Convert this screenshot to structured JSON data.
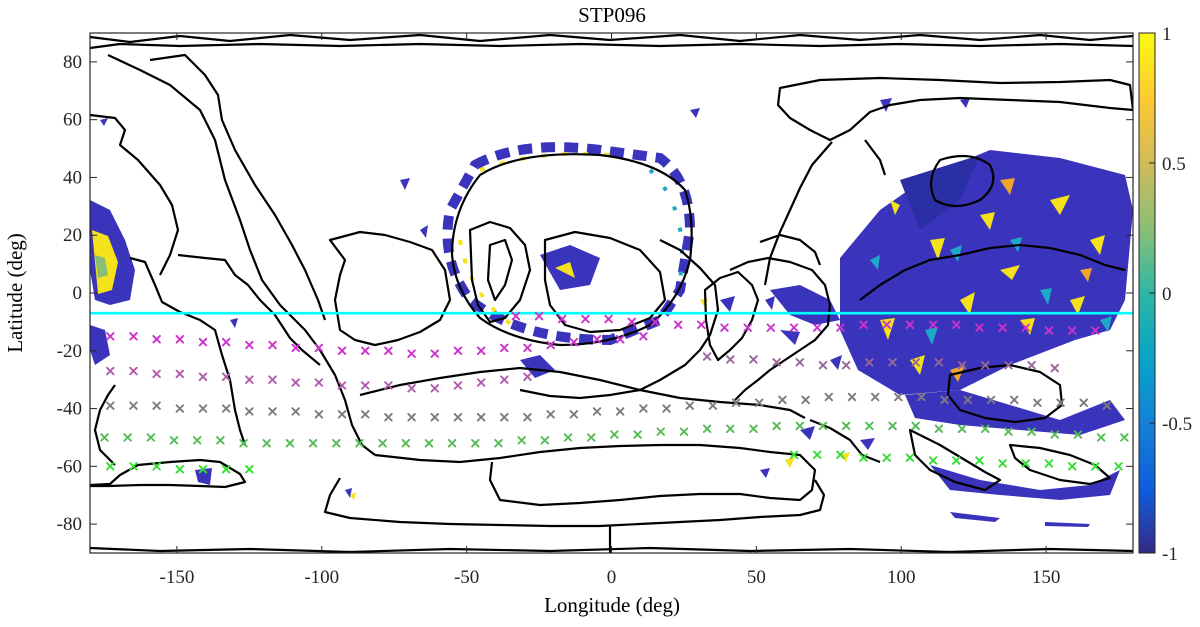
{
  "chart_data": {
    "type": "scatter",
    "title": "STP096",
    "xlabel": "Longitude (deg)",
    "ylabel": "Latitude (deg)",
    "xlim": [
      -180,
      180
    ],
    "ylim": [
      -90,
      90
    ],
    "xticks": [
      -150,
      -100,
      -50,
      0,
      50,
      100,
      150
    ],
    "yticks": [
      -80,
      -60,
      -40,
      -20,
      0,
      20,
      40,
      60,
      80
    ],
    "grid": false,
    "colorbar": {
      "colormap": "parula",
      "range": [
        -1,
        1
      ],
      "ticks": [
        1,
        0.5,
        0,
        -0.5,
        -1
      ],
      "tick_labels": [
        "1",
        "0.5",
        "0",
        "-0.5",
        "-1"
      ],
      "colors": [
        "#352a87",
        "#0f5cdd",
        "#1481d6",
        "#06a4ca",
        "#2eb7a4",
        "#87bf77",
        "#d1bb59",
        "#fec832",
        "#f9fb0e"
      ]
    },
    "reference_line": {
      "latitude": -7,
      "color": "#00ffff"
    },
    "marker_rows": [
      {
        "color": "#cc33cc",
        "points": [
          [
            -173,
            -15
          ],
          [
            -165,
            -15
          ],
          [
            -157,
            -16
          ],
          [
            -149,
            -16
          ],
          [
            -141,
            -17
          ],
          [
            -133,
            -17
          ],
          [
            -125,
            -18
          ],
          [
            -117,
            -18
          ],
          [
            -109,
            -19
          ],
          [
            -101,
            -19
          ],
          [
            -93,
            -20
          ],
          [
            -85,
            -20
          ],
          [
            -77,
            -20
          ],
          [
            -69,
            -21
          ],
          [
            -61,
            -21
          ],
          [
            -53,
            -20
          ],
          [
            -45,
            -20
          ],
          [
            -37,
            -19
          ],
          [
            -29,
            -19
          ],
          [
            -21,
            -18
          ],
          [
            -13,
            -17
          ],
          [
            -5,
            -16
          ],
          [
            3,
            -16
          ],
          [
            11,
            -15
          ]
        ]
      },
      {
        "color": "#cc33cc",
        "points": [
          [
            -33,
            -8
          ],
          [
            -25,
            -8
          ],
          [
            -17,
            -9
          ],
          [
            -9,
            -9
          ],
          [
            -1,
            -9
          ],
          [
            7,
            -10
          ],
          [
            15,
            -10
          ],
          [
            23,
            -11
          ],
          [
            31,
            -11
          ],
          [
            39,
            -12
          ],
          [
            47,
            -12
          ],
          [
            55,
            -12
          ],
          [
            63,
            -12
          ],
          [
            71,
            -12
          ],
          [
            79,
            -12
          ],
          [
            87,
            -11
          ],
          [
            95,
            -11
          ],
          [
            103,
            -11
          ],
          [
            111,
            -11
          ],
          [
            119,
            -11
          ],
          [
            127,
            -12
          ],
          [
            135,
            -12
          ],
          [
            143,
            -12
          ],
          [
            151,
            -13
          ],
          [
            159,
            -13
          ],
          [
            167,
            -13
          ]
        ]
      },
      {
        "color": "#b05cad",
        "points": [
          [
            -173,
            -27
          ],
          [
            -165,
            -27
          ],
          [
            -157,
            -28
          ],
          [
            -149,
            -28
          ],
          [
            -141,
            -29
          ],
          [
            -133,
            -29
          ],
          [
            -125,
            -30
          ],
          [
            -117,
            -30
          ],
          [
            -109,
            -31
          ],
          [
            -101,
            -31
          ],
          [
            -93,
            -32
          ],
          [
            -85,
            -32
          ],
          [
            -77,
            -32
          ],
          [
            -69,
            -33
          ],
          [
            -61,
            -33
          ],
          [
            -53,
            -32
          ],
          [
            -45,
            -31
          ],
          [
            -37,
            -30
          ],
          [
            -29,
            -29
          ]
        ]
      },
      {
        "color": "#996699",
        "points": [
          [
            33,
            -22
          ],
          [
            41,
            -23
          ],
          [
            49,
            -23
          ],
          [
            57,
            -24
          ],
          [
            65,
            -24
          ],
          [
            73,
            -25
          ],
          [
            81,
            -25
          ],
          [
            89,
            -24
          ],
          [
            97,
            -24
          ],
          [
            105,
            -24
          ],
          [
            113,
            -24
          ],
          [
            121,
            -25
          ],
          [
            129,
            -25
          ],
          [
            137,
            -25
          ],
          [
            145,
            -25
          ],
          [
            153,
            -26
          ]
        ]
      },
      {
        "color": "#807a80",
        "points": [
          [
            -173,
            -39
          ],
          [
            -165,
            -39
          ],
          [
            -157,
            -39
          ],
          [
            -149,
            -40
          ],
          [
            -141,
            -40
          ],
          [
            -133,
            -40
          ],
          [
            -125,
            -41
          ],
          [
            -117,
            -41
          ],
          [
            -109,
            -41
          ],
          [
            -101,
            -42
          ],
          [
            -93,
            -42
          ],
          [
            -85,
            -42
          ],
          [
            -77,
            -43
          ],
          [
            -69,
            -43
          ],
          [
            -61,
            -43
          ],
          [
            -53,
            -43
          ],
          [
            -45,
            -43
          ],
          [
            -37,
            -43
          ],
          [
            -29,
            -43
          ],
          [
            -21,
            -42
          ],
          [
            -13,
            -42
          ],
          [
            -5,
            -41
          ],
          [
            3,
            -41
          ],
          [
            11,
            -40
          ],
          [
            19,
            -40
          ],
          [
            27,
            -39
          ],
          [
            35,
            -39
          ],
          [
            43,
            -38
          ],
          [
            51,
            -38
          ],
          [
            59,
            -37
          ],
          [
            67,
            -37
          ],
          [
            75,
            -36
          ],
          [
            83,
            -36
          ],
          [
            91,
            -36
          ],
          [
            99,
            -36
          ],
          [
            107,
            -36
          ],
          [
            115,
            -37
          ],
          [
            123,
            -37
          ],
          [
            131,
            -37
          ],
          [
            139,
            -37
          ],
          [
            147,
            -38
          ],
          [
            155,
            -38
          ],
          [
            163,
            -38
          ],
          [
            171,
            -39
          ]
        ]
      },
      {
        "color": "#55bb55",
        "points": [
          [
            -175,
            -50
          ],
          [
            -167,
            -50
          ],
          [
            -159,
            -50
          ],
          [
            -151,
            -51
          ],
          [
            -143,
            -51
          ],
          [
            -135,
            -51
          ],
          [
            -127,
            -52
          ],
          [
            -119,
            -52
          ],
          [
            -111,
            -52
          ],
          [
            -103,
            -52
          ],
          [
            -95,
            -52
          ],
          [
            -87,
            -52
          ],
          [
            -79,
            -52
          ],
          [
            -71,
            -52
          ],
          [
            -63,
            -52
          ],
          [
            -55,
            -52
          ],
          [
            -47,
            -52
          ],
          [
            -39,
            -52
          ],
          [
            -31,
            -51
          ],
          [
            -23,
            -51
          ],
          [
            -15,
            -50
          ],
          [
            -7,
            -50
          ],
          [
            1,
            -49
          ],
          [
            9,
            -49
          ],
          [
            17,
            -48
          ],
          [
            25,
            -48
          ],
          [
            33,
            -47
          ],
          [
            41,
            -47
          ],
          [
            49,
            -47
          ],
          [
            57,
            -46
          ],
          [
            65,
            -46
          ],
          [
            73,
            -46
          ],
          [
            81,
            -46
          ],
          [
            89,
            -46
          ],
          [
            97,
            -46
          ],
          [
            105,
            -46
          ],
          [
            113,
            -47
          ],
          [
            121,
            -47
          ],
          [
            129,
            -47
          ],
          [
            137,
            -48
          ],
          [
            145,
            -48
          ],
          [
            153,
            -49
          ],
          [
            161,
            -49
          ],
          [
            169,
            -50
          ],
          [
            177,
            -50
          ]
        ]
      },
      {
        "color": "#33dd33",
        "points": [
          [
            -173,
            -60
          ],
          [
            -165,
            -60
          ],
          [
            -157,
            -60
          ],
          [
            -149,
            -61
          ],
          [
            -141,
            -61
          ],
          [
            -133,
            -61
          ],
          [
            -125,
            -61
          ]
        ]
      },
      {
        "color": "#33dd33",
        "points": [
          [
            63,
            -56
          ],
          [
            71,
            -56
          ],
          [
            79,
            -56
          ],
          [
            87,
            -57
          ],
          [
            95,
            -57
          ],
          [
            103,
            -57
          ],
          [
            111,
            -58
          ],
          [
            119,
            -58
          ],
          [
            127,
            -58
          ],
          [
            135,
            -59
          ],
          [
            143,
            -59
          ],
          [
            151,
            -59
          ],
          [
            159,
            -60
          ],
          [
            167,
            -60
          ],
          [
            175,
            -60
          ]
        ]
      }
    ]
  }
}
